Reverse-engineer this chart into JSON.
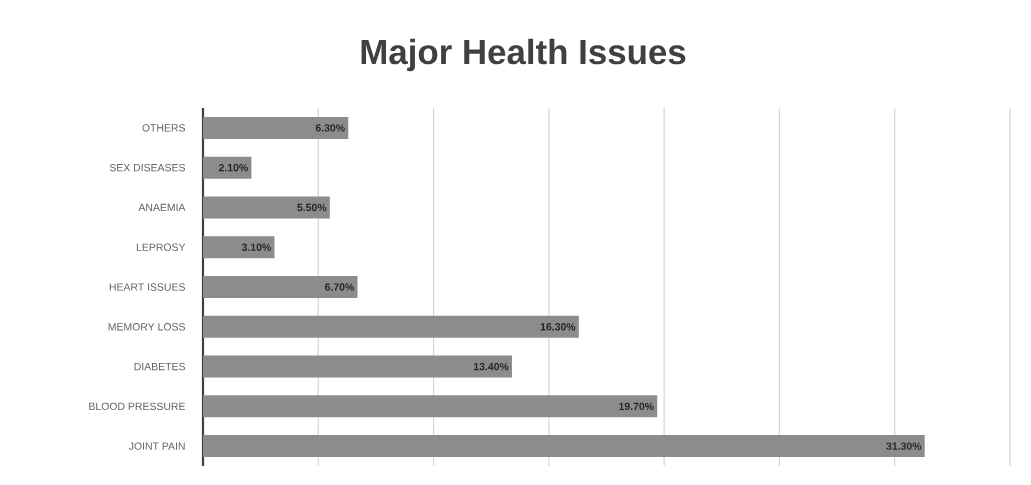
{
  "chart_data": {
    "type": "bar",
    "title": "Major Health Issues",
    "orientation": "horizontal",
    "categories": [
      "OTHERS",
      "SEX DISEASES",
      "ANAEMIA",
      "LEPROSY",
      "HEART ISSUES",
      "MEMORY LOSS",
      "DIABETES",
      "BLOOD PRESSURE",
      "JOINT PAIN"
    ],
    "values": [
      6.3,
      2.1,
      5.5,
      3.1,
      6.7,
      16.3,
      13.4,
      19.7,
      31.3
    ],
    "value_labels": [
      "6.30%",
      "2.10%",
      "5.50%",
      "3.10%",
      "6.70%",
      "16.30%",
      "13.40%",
      "19.70%",
      "31.30%"
    ],
    "color": "#8c8c8c",
    "xlim": [
      0,
      35
    ],
    "xticks": [
      0,
      5,
      10,
      15,
      20,
      25,
      30,
      35
    ],
    "grid": "x",
    "tick_labels": "y"
  }
}
